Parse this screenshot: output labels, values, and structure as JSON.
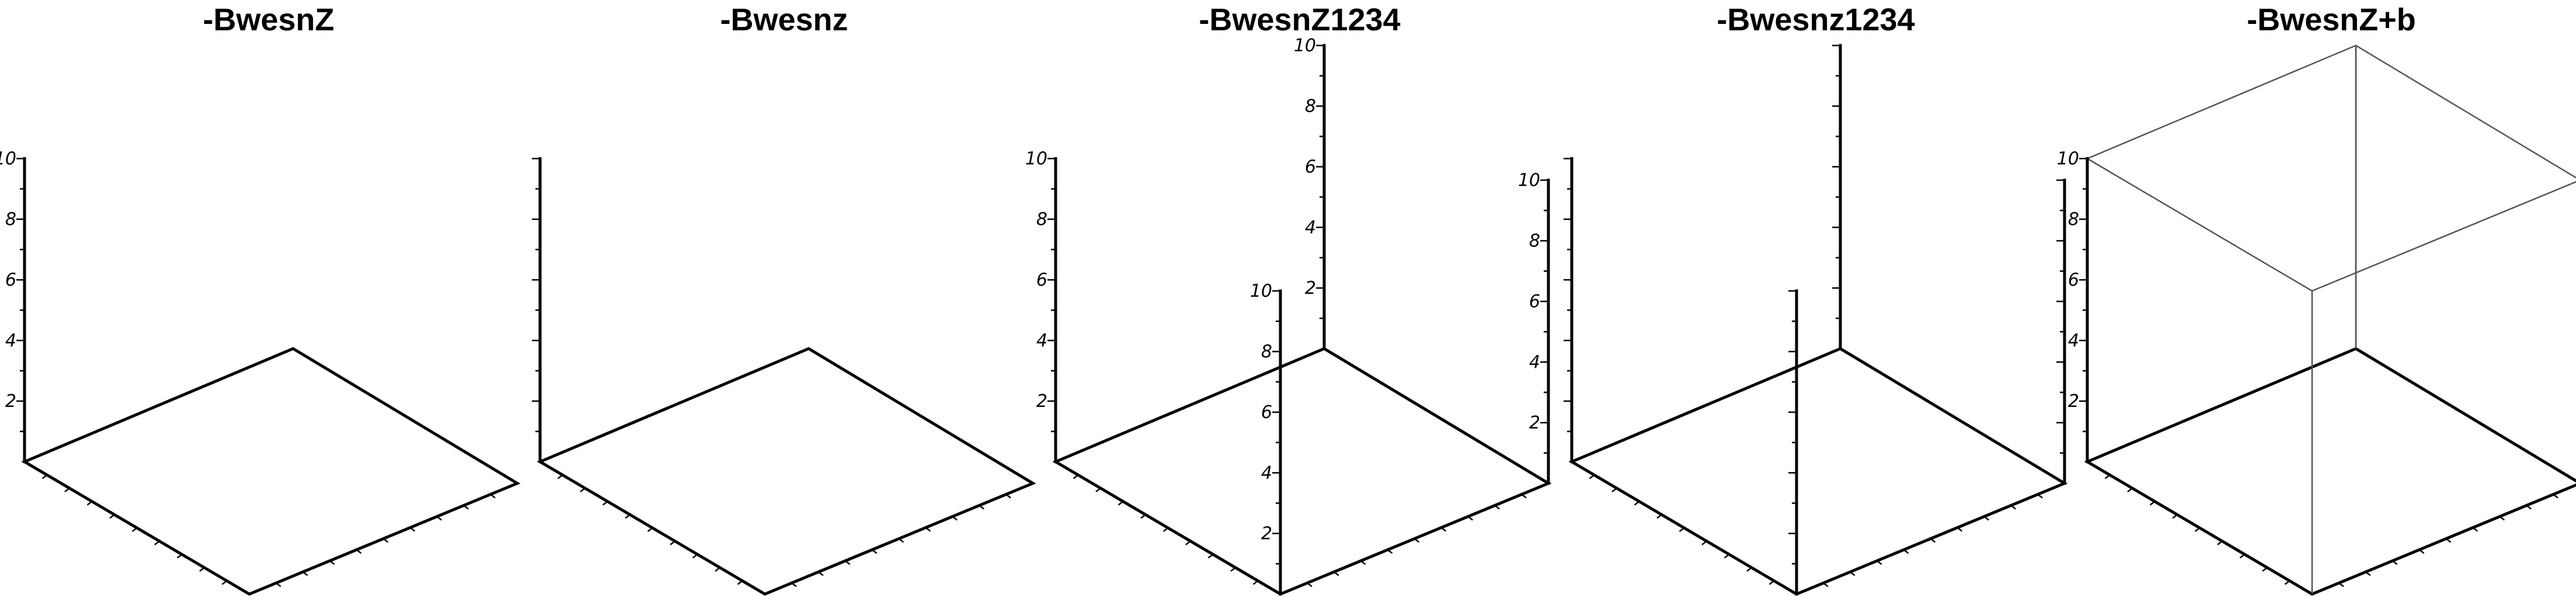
{
  "panels": [
    {
      "title": "-BwesnZ",
      "z_axes": [
        {
          "corner": "W",
          "labels": true
        }
      ],
      "box": false
    },
    {
      "title": "-Bwesnz",
      "z_axes": [
        {
          "corner": "W",
          "labels": false
        }
      ],
      "box": false
    },
    {
      "title": "-BwesnZ1234",
      "z_axes": [
        {
          "corner": "W",
          "labels": true
        },
        {
          "corner": "S",
          "labels": true
        },
        {
          "corner": "E",
          "labels": true
        },
        {
          "corner": "N",
          "labels": true
        }
      ],
      "box": false
    },
    {
      "title": "-Bwesnz1234",
      "z_axes": [
        {
          "corner": "W",
          "labels": false
        },
        {
          "corner": "S",
          "labels": false
        },
        {
          "corner": "E",
          "labels": false
        },
        {
          "corner": "N",
          "labels": false
        }
      ],
      "box": false
    },
    {
      "title": "-BwesnZ+b",
      "z_axes": [
        {
          "corner": "W",
          "labels": true
        }
      ],
      "box": true
    }
  ],
  "z_axis": {
    "range": [
      0,
      10
    ],
    "major_ticks": [
      2,
      4,
      6,
      8,
      10
    ],
    "tick_labels": [
      "2",
      "4",
      "6",
      "8",
      "10"
    ]
  },
  "base": {
    "ticks_per_edge": 10
  },
  "colors": {
    "axis": "#000000",
    "frame": "#555555",
    "background": "#ffffff"
  }
}
